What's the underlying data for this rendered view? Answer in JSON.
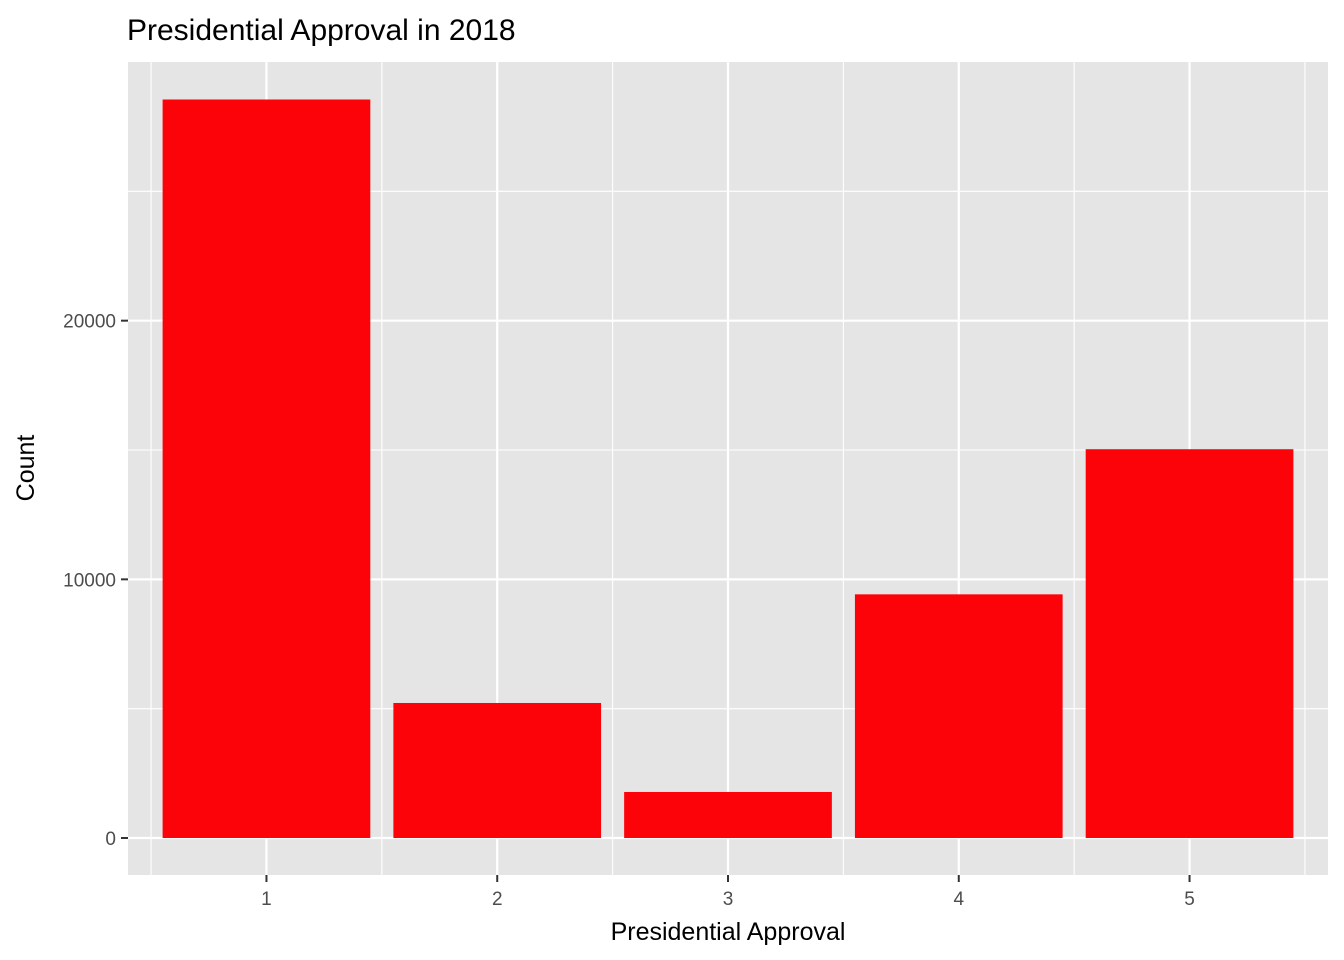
{
  "chart_data": {
    "type": "bar",
    "title": "Presidential Approval in 2018",
    "xlabel": "Presidential Approval",
    "ylabel": "Count",
    "categories": [
      "1",
      "2",
      "3",
      "4",
      "5"
    ],
    "values": [
      28550,
      5220,
      1780,
      9420,
      15030
    ],
    "yticks": [
      "0",
      "10000",
      "20000"
    ],
    "ylim": [
      -1430,
      30000
    ],
    "grid": true,
    "legend": "none",
    "bar_color": "#fc0209",
    "panel_color": "#e5e5e5",
    "grid_color": "#ffffff"
  }
}
